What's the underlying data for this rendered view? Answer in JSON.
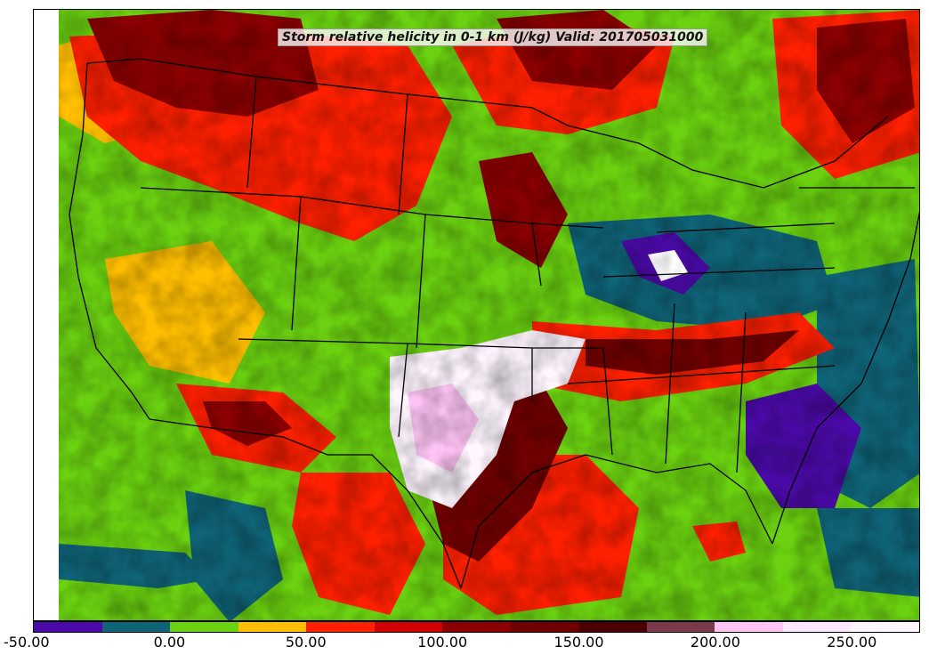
{
  "title": "Storm relative helicity in 0-1 km (J/kg) Valid: 201705031000",
  "colorbar": {
    "min": -50,
    "max": 275,
    "step": 25,
    "colors": [
      "#4b0aa8",
      "#0f6478",
      "#6bd110",
      "#ffbf00",
      "#ff2000",
      "#d00000",
      "#8b0000",
      "#700000",
      "#4a0000",
      "#7a3a4a",
      "#ffc4f4",
      "#ffe8ff",
      "#fff6ff"
    ],
    "ticks": [
      "-50.00",
      "0.00",
      "50.00",
      "100.00",
      "150.00",
      "200.00",
      "250.00"
    ],
    "tick_values": [
      -50,
      0,
      50,
      100,
      150,
      200,
      250
    ]
  }
}
